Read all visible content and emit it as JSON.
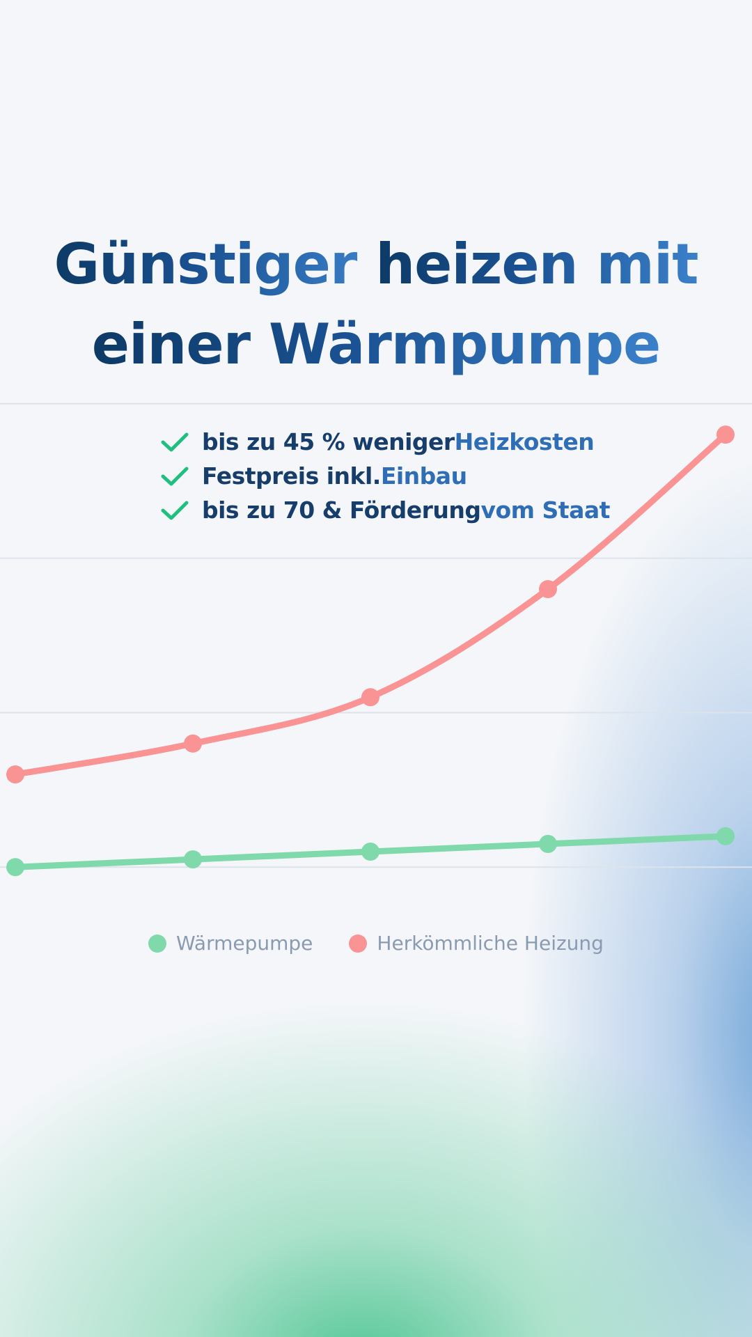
{
  "headline": {
    "line1_dark": "Günstiger ",
    "line1_light": "heizen mit",
    "line2": "einer Wärmpumpe"
  },
  "bullets": [
    {
      "icon": "check-icon",
      "dark": "bis zu 45 % weniger ",
      "light": "Heizkosten"
    },
    {
      "icon": "check-icon",
      "dark": "Festpreis inkl. ",
      "light": "Einbau"
    },
    {
      "icon": "check-icon",
      "dark": "bis zu 70 & Förderung ",
      "light": "vom Staat"
    }
  ],
  "colors": {
    "check": "#1fbf7f",
    "heatpump": "#7fd9aa",
    "conventional": "#f99394",
    "grid": "#dde3ea"
  },
  "chart_data": {
    "type": "line",
    "x": [
      1,
      2,
      3,
      4,
      5
    ],
    "ylim": [
      0,
      10
    ],
    "grid": true,
    "legend": "bottom-center",
    "series": [
      {
        "name": "Wärmepumpe",
        "color": "#7fd9aa",
        "values": [
          2.0,
          2.1,
          2.2,
          2.3,
          2.4
        ]
      },
      {
        "name": "Herkömmliche Heizung",
        "color": "#f99394",
        "values": [
          3.2,
          3.6,
          4.2,
          5.6,
          7.6
        ]
      }
    ]
  }
}
